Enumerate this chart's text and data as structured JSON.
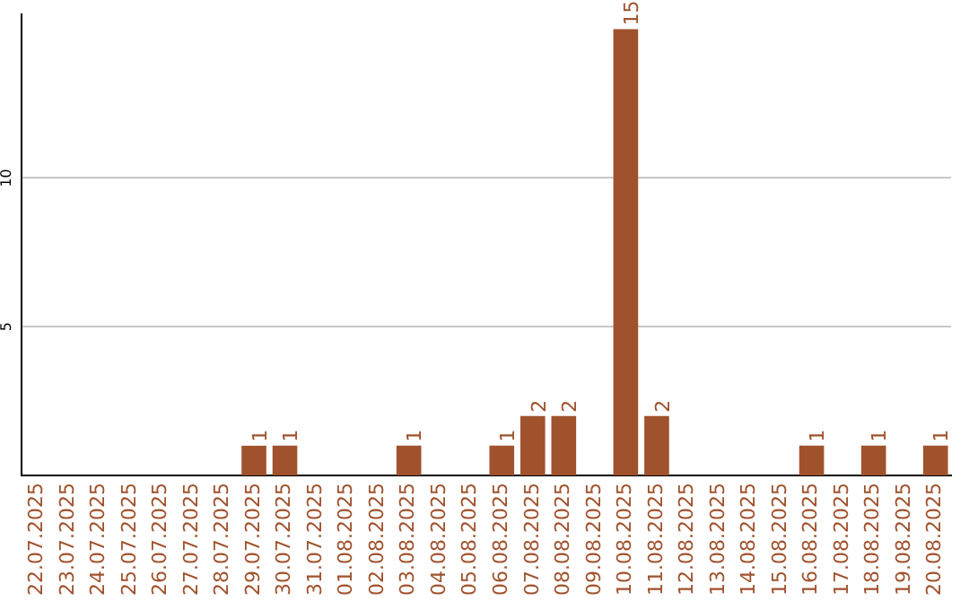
{
  "chart_data": {
    "type": "bar",
    "categories": [
      "22.07.2025",
      "23.07.2025",
      "24.07.2025",
      "25.07.2025",
      "26.07.2025",
      "27.07.2025",
      "28.07.2025",
      "29.07.2025",
      "30.07.2025",
      "31.07.2025",
      "01.08.2025",
      "02.08.2025",
      "03.08.2025",
      "04.08.2025",
      "05.08.2025",
      "06.08.2025",
      "07.08.2025",
      "08.08.2025",
      "09.08.2025",
      "10.08.2025",
      "11.08.2025",
      "12.08.2025",
      "13.08.2025",
      "14.08.2025",
      "15.08.2025",
      "16.08.2025",
      "17.08.2025",
      "18.08.2025",
      "19.08.2025",
      "20.08.2025"
    ],
    "values": [
      0,
      0,
      0,
      0,
      0,
      0,
      0,
      1,
      1,
      0,
      0,
      0,
      1,
      0,
      0,
      1,
      2,
      2,
      0,
      15,
      2,
      0,
      0,
      0,
      0,
      1,
      0,
      1,
      0,
      1
    ],
    "value_labels": [
      null,
      null,
      null,
      null,
      null,
      null,
      null,
      "1",
      "1",
      null,
      null,
      null,
      "1",
      null,
      null,
      "1",
      "2",
      "2",
      null,
      "15",
      "2",
      null,
      null,
      null,
      null,
      "1",
      null,
      "1",
      null,
      "1"
    ],
    "color": "#a0522d",
    "ylim": [
      0,
      15.5
    ],
    "yticks": [
      5,
      10
    ],
    "grid": "y",
    "legend": false
  }
}
